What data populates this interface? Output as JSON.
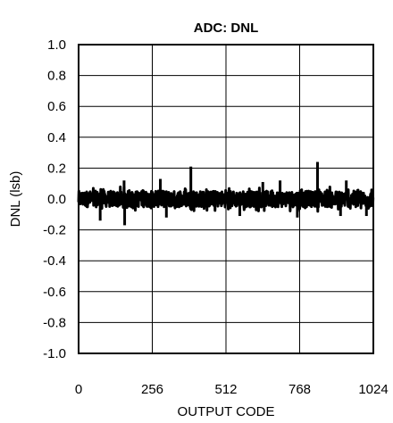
{
  "chart_data": {
    "type": "line",
    "title": "ADC: DNL",
    "xlabel": "OUTPUT CODE",
    "ylabel": "DNL (lsb)",
    "xlim": [
      0,
      1024
    ],
    "ylim": [
      -1.0,
      1.0
    ],
    "x_ticks": [
      0,
      256,
      512,
      768,
      1024
    ],
    "x_tick_labels": [
      "0",
      "256",
      "512",
      "768",
      "1024"
    ],
    "y_ticks": [
      1.0,
      0.8,
      0.6,
      0.4,
      0.2,
      0.0,
      -0.2,
      -0.4,
      -0.6,
      -0.8,
      -1.0
    ],
    "y_tick_labels": [
      "1.0",
      "0.8",
      "0.6",
      "0.4",
      "0.2",
      "0.0",
      "-0.2",
      "-0.4",
      "-0.6",
      "-0.8",
      "-1.0"
    ],
    "grid": true,
    "series": [
      {
        "x_range": [
          0,
          1023
        ],
        "band": [
          -0.08,
          0.08
        ],
        "peaks": [
          {
            "x": 158,
            "y": 0.12
          },
          {
            "x": 284,
            "y": 0.13
          },
          {
            "x": 390,
            "y": 0.21
          },
          {
            "x": 640,
            "y": 0.11
          },
          {
            "x": 700,
            "y": 0.12
          },
          {
            "x": 830,
            "y": 0.24
          },
          {
            "x": 930,
            "y": 0.12
          }
        ],
        "troughs": [
          {
            "x": 75,
            "y": -0.14
          },
          {
            "x": 160,
            "y": -0.17
          },
          {
            "x": 305,
            "y": -0.12
          },
          {
            "x": 560,
            "y": -0.11
          },
          {
            "x": 760,
            "y": -0.12
          },
          {
            "x": 910,
            "y": -0.11
          },
          {
            "x": 1000,
            "y": -0.11
          }
        ]
      }
    ]
  }
}
